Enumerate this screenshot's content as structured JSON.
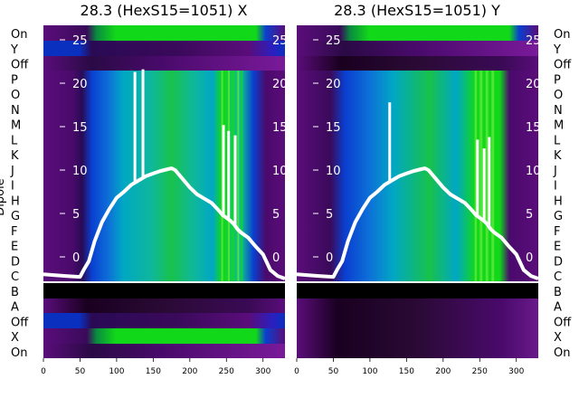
{
  "chart_data": [
    {
      "type": "heatmap",
      "title": "28.3 (HexS15=1051) X",
      "ylabel": "Dipole",
      "xlim": [
        0,
        330
      ],
      "xticks": [
        0,
        50,
        100,
        150,
        200,
        250,
        300
      ],
      "rows": [
        "On",
        "Y",
        "Off",
        "P",
        "O",
        "N",
        "M",
        "L",
        "K",
        "J",
        "I",
        "H",
        "G",
        "F",
        "E",
        "D",
        "C",
        "B",
        "A",
        "Off",
        "X",
        "On"
      ],
      "overlay_axis_ticks": [
        0,
        5,
        10,
        15,
        20,
        25
      ],
      "overlay_curve": {
        "x": [
          0,
          30,
          50,
          55,
          62,
          70,
          80,
          90,
          100,
          110,
          120,
          130,
          140,
          150,
          160,
          170,
          175,
          180,
          190,
          200,
          210,
          220,
          230,
          240,
          245,
          250,
          255,
          260,
          265,
          270,
          280,
          290,
          300,
          310,
          320,
          330
        ],
        "y": [
          -2,
          -2.2,
          -2.3,
          -1.5,
          -0.5,
          1.8,
          4,
          5.5,
          6.8,
          7.5,
          8.3,
          8.8,
          9.3,
          9.6,
          9.9,
          10.1,
          10.2,
          10.0,
          9.0,
          8.0,
          7.2,
          6.7,
          6.2,
          5.3,
          4.8,
          4.5,
          4.2,
          3.8,
          3.2,
          2.8,
          2.2,
          1.2,
          0.3,
          -1.5,
          -2.2,
          -2.5
        ]
      },
      "overlay_spikes": [
        {
          "x": 125,
          "y": 21.3
        },
        {
          "x": 136,
          "y": 21.6
        },
        {
          "x": 246,
          "y": 15.2
        },
        {
          "x": 253,
          "y": 14.5
        },
        {
          "x": 262,
          "y": 14.0
        }
      ]
    },
    {
      "type": "heatmap",
      "title": "28.3 (HexS15=1051) Y",
      "xlim": [
        0,
        330
      ],
      "xticks": [
        0,
        50,
        100,
        150,
        200,
        250,
        300
      ],
      "rows": [
        "On",
        "Y",
        "Off",
        "P",
        "O",
        "N",
        "M",
        "L",
        "K",
        "J",
        "I",
        "H",
        "G",
        "F",
        "E",
        "D",
        "C",
        "B",
        "A",
        "Off",
        "X",
        "On"
      ],
      "overlay_axis_ticks": [
        0,
        5,
        10,
        15,
        20,
        25
      ],
      "overlay_curve": {
        "x": [
          0,
          30,
          50,
          55,
          62,
          70,
          80,
          90,
          100,
          110,
          120,
          130,
          140,
          150,
          160,
          170,
          175,
          180,
          190,
          200,
          210,
          220,
          230,
          240,
          245,
          250,
          255,
          260,
          265,
          270,
          280,
          290,
          300,
          310,
          320,
          330
        ],
        "y": [
          -2,
          -2.2,
          -2.3,
          -1.5,
          -0.5,
          1.8,
          4,
          5.5,
          6.8,
          7.5,
          8.3,
          8.8,
          9.3,
          9.6,
          9.9,
          10.1,
          10.2,
          10.0,
          9.0,
          8.0,
          7.2,
          6.7,
          6.2,
          5.3,
          4.8,
          4.5,
          4.2,
          3.8,
          3.2,
          2.8,
          2.2,
          1.2,
          0.3,
          -1.5,
          -2.2,
          -2.5
        ]
      },
      "overlay_spikes": [
        {
          "x": 127,
          "y": 17.8
        },
        {
          "x": 247,
          "y": 13.5
        },
        {
          "x": 256,
          "y": 12.5
        },
        {
          "x": 263,
          "y": 13.8
        }
      ]
    }
  ],
  "colors": {
    "purple": "#5a0d7a",
    "dark": "#1a0020",
    "blue": "#0a3fd0",
    "cyan": "#00a7c4",
    "green": "#12d81a",
    "curve": "#ffffff",
    "separator": "#000000"
  }
}
